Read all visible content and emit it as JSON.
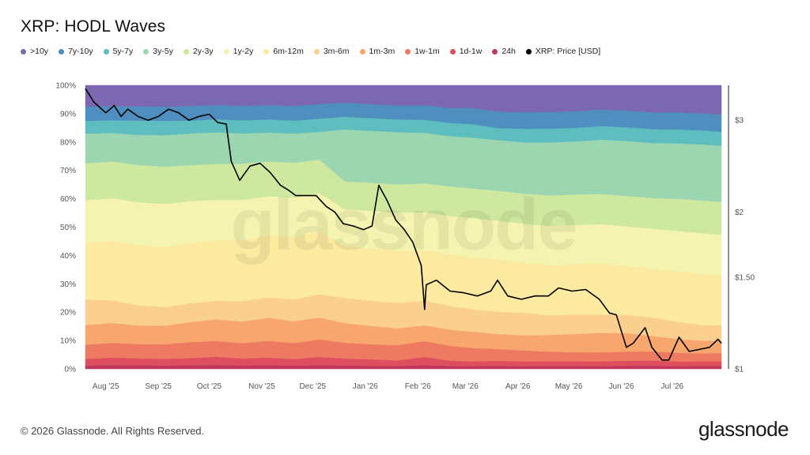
{
  "title": "XRP: HODL Waves",
  "footer": {
    "copyright": "© 2026 Glassnode. All Rights Reserved.",
    "logo": "glassnode"
  },
  "watermark": "glassnode",
  "colors": {
    ">10y": "#7b68b0",
    "7y-10y": "#4f8fbf",
    "5y-7y": "#5ebdbf",
    "3y-5y": "#9bd6b0",
    "2y-3y": "#cfe8a0",
    "1y-2y": "#f4f4b0",
    "6m-12m": "#fbeaa0",
    "3m-6m": "#fbd08f",
    "1m-3m": "#f7a66e",
    "1w-1m": "#ee7a62",
    "1d-1w": "#dd4e5e",
    "24h": "#c0395a",
    "price": "#000000"
  },
  "chart_data": {
    "type": "area",
    "stacked": true,
    "title": "XRP: HODL Waves",
    "legend_position": "top-left",
    "grid": false,
    "x": [
      "2025-07-20",
      "2025-08-05",
      "2025-08-20",
      "2025-09-05",
      "2025-09-20",
      "2025-10-05",
      "2025-10-20",
      "2025-11-05",
      "2025-11-20",
      "2025-12-05",
      "2025-12-20",
      "2026-01-05",
      "2026-01-20",
      "2026-02-05",
      "2026-02-20",
      "2026-03-05",
      "2026-03-20",
      "2026-04-05",
      "2026-04-20",
      "2026-05-05",
      "2026-05-20",
      "2026-06-05",
      "2026-06-20",
      "2026-07-05",
      "2026-07-20",
      "2026-07-30"
    ],
    "x_ticks": [
      "Aug '25",
      "Sep '25",
      "Oct '25",
      "Nov '25",
      "Dec '25",
      "Jan '26",
      "Feb '26",
      "Mar '26",
      "Apr '26",
      "May '26",
      "Jun '26",
      "Jul '26"
    ],
    "x_tick_dates": [
      "2025-08-01",
      "2025-09-01",
      "2025-10-01",
      "2025-11-01",
      "2025-12-01",
      "2026-01-01",
      "2026-02-01",
      "2026-03-01",
      "2026-04-01",
      "2026-05-01",
      "2026-06-01",
      "2026-07-01"
    ],
    "x_range": [
      "2025-07-20",
      "2026-07-30"
    ],
    "ylim": [
      0,
      100
    ],
    "y_ticks": [
      "0%",
      "10%",
      "20%",
      "30%",
      "40%",
      "50%",
      "60%",
      "70%",
      "80%",
      "90%",
      "100%"
    ],
    "series": [
      {
        "name": "24h",
        "values": [
          1.2,
          1.4,
          1.3,
          1.2,
          1.3,
          1.4,
          1.2,
          1.3,
          1.1,
          1.3,
          1.2,
          1.1,
          1.0,
          1.3,
          1.0,
          0.9,
          1.0,
          0.9,
          0.9,
          0.9,
          0.9,
          1.0,
          1.0,
          0.9,
          0.9,
          0.9
        ]
      },
      {
        "name": "1d-1w",
        "values": [
          2.3,
          2.6,
          2.4,
          2.3,
          2.5,
          2.8,
          2.4,
          2.6,
          2.3,
          2.8,
          2.5,
          2.3,
          2.0,
          2.8,
          1.8,
          1.6,
          1.7,
          1.6,
          1.6,
          1.6,
          1.6,
          1.7,
          1.7,
          1.5,
          1.5,
          1.5
        ]
      },
      {
        "name": "1w-1m",
        "values": [
          5.0,
          5.2,
          5.0,
          5.1,
          5.5,
          5.5,
          5.3,
          5.8,
          5.5,
          6.0,
          5.6,
          5.4,
          5.4,
          5.5,
          5.0,
          4.5,
          4.0,
          3.6,
          3.2,
          3.0,
          3.0,
          3.0,
          3.0,
          2.8,
          2.6,
          2.7
        ]
      },
      {
        "name": "1m-3m",
        "values": [
          7.0,
          7.0,
          6.5,
          6.5,
          7.0,
          7.5,
          7.5,
          8.0,
          7.5,
          7.5,
          7.0,
          6.5,
          6.0,
          5.5,
          5.5,
          5.5,
          5.0,
          5.0,
          5.5,
          6.0,
          6.5,
          6.0,
          5.0,
          4.5,
          4.0,
          4.0
        ]
      },
      {
        "name": "3m-6m",
        "values": [
          9.0,
          8.0,
          7.0,
          6.5,
          6.5,
          6.5,
          7.0,
          7.0,
          7.5,
          8.0,
          9.0,
          9.0,
          9.0,
          8.5,
          8.0,
          7.5,
          7.5,
          7.5,
          6.5,
          6.5,
          6.0,
          6.0,
          6.0,
          5.5,
          5.0,
          5.0
        ]
      },
      {
        "name": "6m-12m",
        "values": [
          20.0,
          21.0,
          21.0,
          21.0,
          21.0,
          21.0,
          21.0,
          21.5,
          21.5,
          21.5,
          18.5,
          18.5,
          18.5,
          17.5,
          17.5,
          17.5,
          17.5,
          16.5,
          16.5,
          16.5,
          17.0,
          16.0,
          16.0,
          16.5,
          16.5,
          16.0
        ]
      },
      {
        "name": "1y-2y",
        "values": [
          15.0,
          15.0,
          15.0,
          15.0,
          14.5,
          14.0,
          14.0,
          13.5,
          13.5,
          13.0,
          13.0,
          13.5,
          13.5,
          13.0,
          13.0,
          13.0,
          13.0,
          13.0,
          13.0,
          13.0,
          13.0,
          13.0,
          13.0,
          13.0,
          13.0,
          13.0
        ]
      },
      {
        "name": "2y-3y",
        "values": [
          13.0,
          13.0,
          13.0,
          13.0,
          12.5,
          12.5,
          12.5,
          12.0,
          12.0,
          11.5,
          10.0,
          10.0,
          10.0,
          10.0,
          10.0,
          10.0,
          10.0,
          10.0,
          10.0,
          10.0,
          10.0,
          10.0,
          10.0,
          10.5,
          10.5,
          10.5
        ]
      },
      {
        "name": "3y-5y",
        "values": [
          10.5,
          10.0,
          10.5,
          11.0,
          11.0,
          11.0,
          10.5,
          10.0,
          10.0,
          9.5,
          18.5,
          18.5,
          18.5,
          17.5,
          17.0,
          17.0,
          17.0,
          17.0,
          17.5,
          17.5,
          18.0,
          18.0,
          18.0,
          18.0,
          18.0,
          18.0
        ]
      },
      {
        "name": "5y-7y",
        "values": [
          4.5,
          4.5,
          5.0,
          5.0,
          4.5,
          4.5,
          4.5,
          4.5,
          4.5,
          4.5,
          4.5,
          4.5,
          4.5,
          4.5,
          4.5,
          4.5,
          4.0,
          4.5,
          4.5,
          4.5,
          4.5,
          4.5,
          4.5,
          4.5,
          4.5,
          4.5
        ]
      },
      {
        "name": "7y-10y",
        "values": [
          5.0,
          5.0,
          5.0,
          5.0,
          5.0,
          5.0,
          5.0,
          5.0,
          5.0,
          5.0,
          5.0,
          5.0,
          5.0,
          5.0,
          5.0,
          5.5,
          5.5,
          5.5,
          5.5,
          5.5,
          5.5,
          5.5,
          5.5,
          5.5,
          5.5,
          5.5
        ]
      },
      {
        "name": ">10y",
        "values": [
          7.5,
          7.3,
          7.3,
          7.4,
          7.2,
          6.8,
          7.1,
          6.8,
          7.1,
          6.4,
          6.2,
          6.7,
          7.1,
          6.9,
          7.7,
          7.5,
          8.8,
          8.9,
          8.8,
          8.5,
          8.0,
          8.3,
          8.8,
          8.8,
          9.0,
          9.4
        ]
      }
    ],
    "price": {
      "name": "XRP: Price [USD]",
      "axis": "right",
      "scale": "log",
      "ylim": [
        1.0,
        3.5
      ],
      "y_ticks": [
        1,
        1.5,
        2,
        3
      ],
      "y_tick_labels": [
        "$1",
        "$1.50",
        "$2",
        "$3"
      ],
      "x": [
        "2025-07-20",
        "2025-07-25",
        "2025-08-01",
        "2025-08-06",
        "2025-08-10",
        "2025-08-14",
        "2025-08-20",
        "2025-08-26",
        "2025-09-01",
        "2025-09-07",
        "2025-09-13",
        "2025-09-19",
        "2025-09-25",
        "2025-10-01",
        "2025-10-06",
        "2025-10-11",
        "2025-10-14",
        "2025-10-19",
        "2025-10-25",
        "2025-10-31",
        "2025-11-06",
        "2025-11-12",
        "2025-11-17",
        "2025-11-21",
        "2025-11-27",
        "2025-12-03",
        "2025-12-09",
        "2025-12-14",
        "2025-12-19",
        "2025-12-25",
        "2025-12-31",
        "2026-01-05",
        "2026-01-09",
        "2026-01-14",
        "2026-01-19",
        "2026-01-24",
        "2026-01-29",
        "2026-02-03",
        "2026-02-05",
        "2026-02-06",
        "2026-02-12",
        "2026-02-20",
        "2026-02-28",
        "2026-03-08",
        "2026-03-16",
        "2026-03-20",
        "2026-03-26",
        "2026-04-03",
        "2026-04-11",
        "2026-04-19",
        "2026-04-25",
        "2026-05-03",
        "2026-05-11",
        "2026-05-19",
        "2026-05-25",
        "2026-05-29",
        "2026-06-04",
        "2026-06-08",
        "2026-06-15",
        "2026-06-19",
        "2026-06-25",
        "2026-06-29",
        "2026-07-05",
        "2026-07-11",
        "2026-07-17",
        "2026-07-23",
        "2026-07-28",
        "2026-07-30"
      ],
      "values": [
        3.45,
        3.25,
        3.1,
        3.2,
        3.05,
        3.15,
        3.05,
        3.0,
        3.05,
        3.15,
        3.1,
        3.0,
        3.05,
        3.08,
        2.97,
        2.95,
        2.5,
        2.3,
        2.45,
        2.48,
        2.38,
        2.25,
        2.2,
        2.15,
        2.15,
        2.15,
        2.05,
        2.0,
        1.9,
        1.88,
        1.85,
        1.88,
        2.25,
        2.1,
        1.93,
        1.85,
        1.75,
        1.58,
        1.3,
        1.45,
        1.48,
        1.41,
        1.4,
        1.38,
        1.41,
        1.48,
        1.38,
        1.36,
        1.38,
        1.38,
        1.43,
        1.41,
        1.42,
        1.36,
        1.28,
        1.27,
        1.1,
        1.12,
        1.2,
        1.1,
        1.04,
        1.04,
        1.15,
        1.08,
        1.09,
        1.1,
        1.14,
        1.12
      ]
    }
  }
}
